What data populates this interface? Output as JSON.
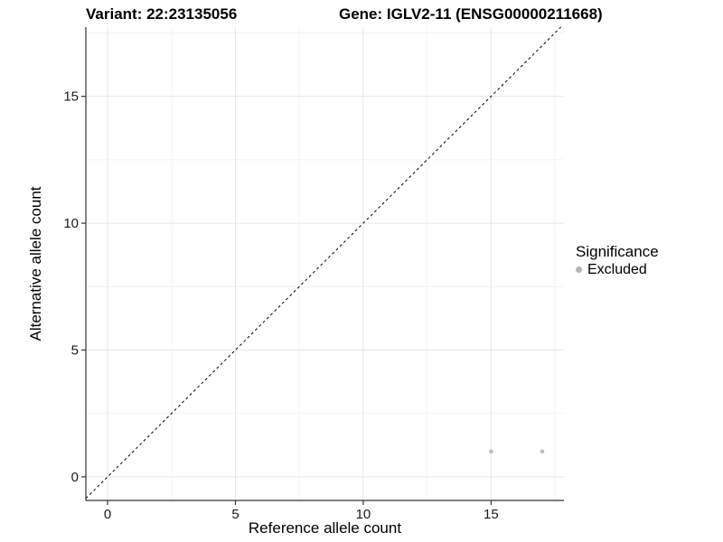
{
  "chart_data": {
    "type": "scatter",
    "title_left": "Variant: 22:23135056",
    "title_right": "Gene: IGLV2-11 (ENSG00000211668)",
    "xlabel": "Reference allele count",
    "ylabel": "Alternative allele count",
    "x_ticks": [
      0,
      5,
      10,
      15
    ],
    "y_ticks": [
      0,
      5,
      10,
      15
    ],
    "x_minor_ticks": [
      2.5,
      7.5,
      12.5,
      17.5
    ],
    "y_minor_ticks": [
      2.5,
      7.5,
      12.5,
      17.5
    ],
    "xlim": [
      -0.85,
      17.85
    ],
    "ylim": [
      -0.93,
      17.73
    ],
    "grid": {
      "major": true,
      "minor": true
    },
    "reference_line": {
      "type": "identity",
      "style": "dashed",
      "color": "#000000"
    },
    "series": [
      {
        "name": "Excluded",
        "color": "#bebebe",
        "points": [
          {
            "x": 15,
            "y": 1
          },
          {
            "x": 17,
            "y": 1
          }
        ]
      }
    ],
    "legend": {
      "title": "Significance",
      "position": "right",
      "items": [
        {
          "label": "Excluded",
          "color": "#b3b3b3"
        }
      ]
    }
  },
  "colors": {
    "background": "#ffffff",
    "axis_line": "#333333",
    "tick_text": "#1a1a1a",
    "major_grid": "#e8e8e8",
    "minor_grid": "#f4f4f4"
  }
}
